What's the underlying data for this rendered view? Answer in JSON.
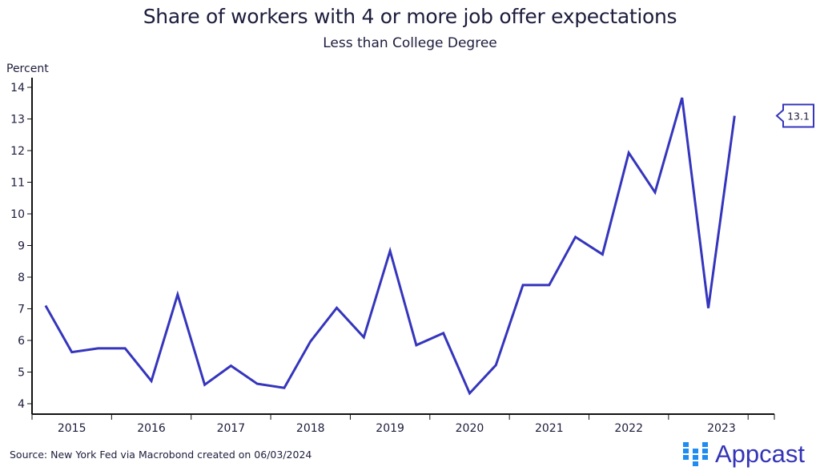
{
  "chart_data": {
    "type": "line",
    "title": "Share of workers with 4 or more job offer expectations",
    "subtitle": "Less than College Degree",
    "ylabel": "Percent",
    "xlabel": "",
    "ylim": [
      4,
      14
    ],
    "yticks": [
      4,
      5,
      6,
      7,
      8,
      9,
      10,
      11,
      12,
      13,
      14
    ],
    "xlim": [
      2015.0,
      2024.33
    ],
    "xtick_labels": [
      "2015",
      "2016",
      "2017",
      "2018",
      "2019",
      "2020",
      "2021",
      "2022",
      "2023"
    ],
    "grid": false,
    "series": [
      {
        "name": "Less than College Degree",
        "color": "#3535bd",
        "x": [
          2015.17,
          2015.5,
          2015.83,
          2016.17,
          2016.5,
          2016.83,
          2017.17,
          2017.5,
          2017.83,
          2018.17,
          2018.5,
          2018.83,
          2019.17,
          2019.5,
          2019.83,
          2020.17,
          2020.5,
          2020.83,
          2021.17,
          2021.5,
          2021.83,
          2022.17,
          2022.5,
          2022.83,
          2023.17,
          2023.5,
          2023.83
        ],
        "values": [
          7.1,
          5.63,
          5.75,
          5.75,
          4.72,
          7.45,
          4.6,
          5.2,
          4.63,
          4.5,
          5.97,
          7.03,
          6.1,
          8.83,
          5.85,
          6.23,
          4.33,
          5.22,
          7.75,
          7.75,
          9.27,
          8.72,
          11.93,
          10.68,
          13.67,
          7.02,
          13.1
        ]
      }
    ],
    "end_label": "13.1",
    "source": "Source: New York Fed via Macrobond created on 06/03/2024"
  },
  "logo": {
    "text": "Appcast",
    "color": "#3434b8",
    "dots_color": "#1e8cf0"
  }
}
